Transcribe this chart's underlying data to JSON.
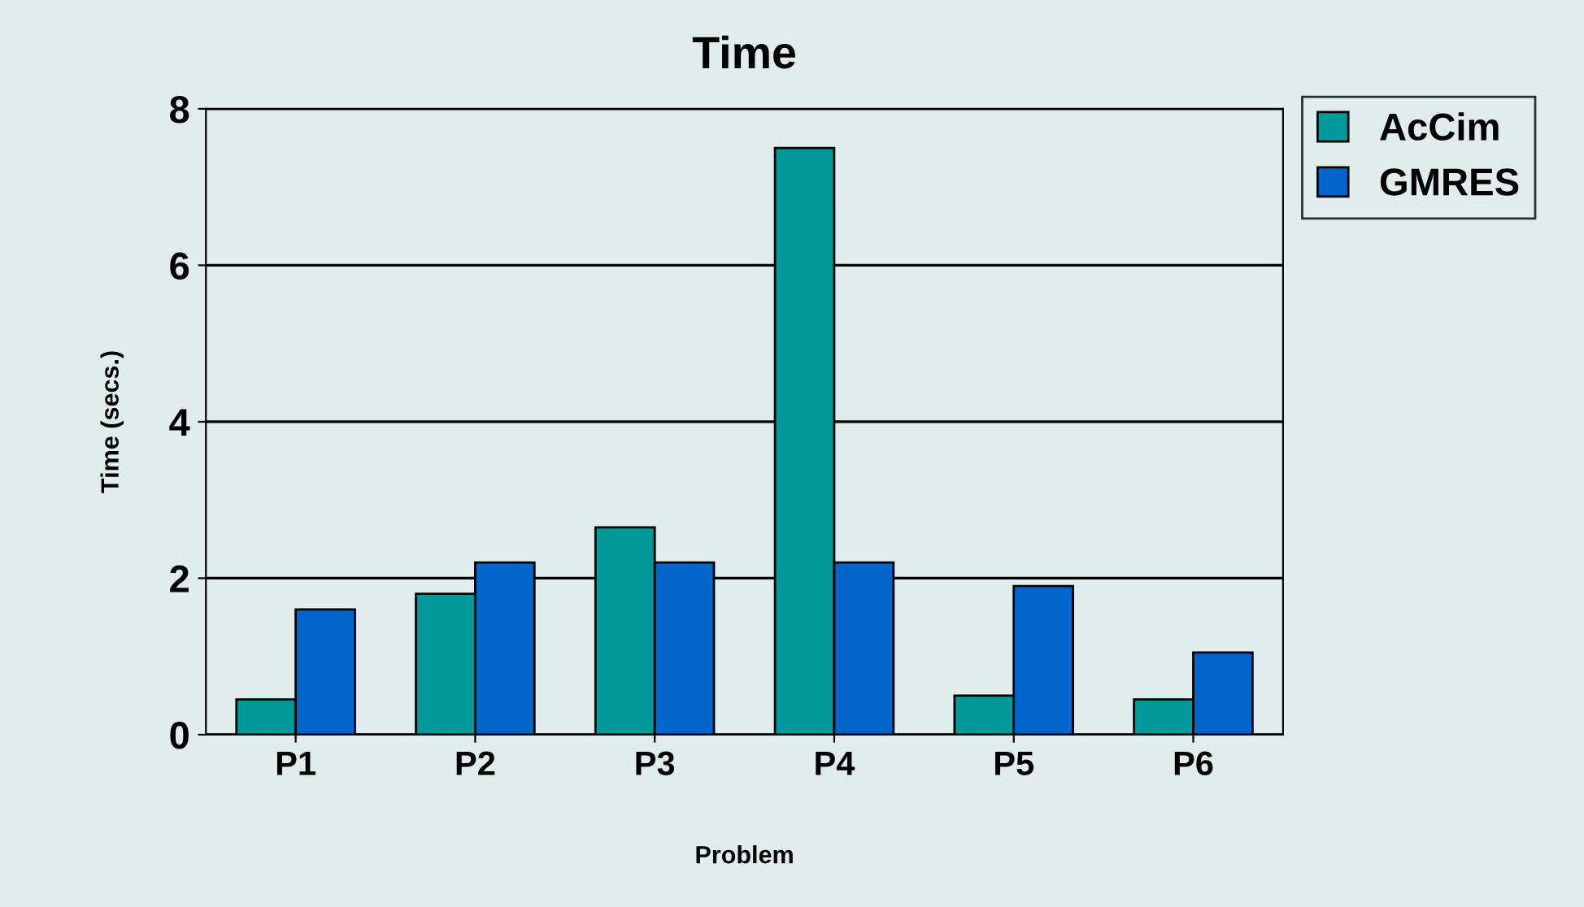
{
  "chart_data": {
    "type": "bar",
    "title": "Time",
    "xlabel": "Problem",
    "ylabel": "Time (secs.)",
    "categories": [
      "P1",
      "P2",
      "P3",
      "P4",
      "P5",
      "P6"
    ],
    "series": [
      {
        "name": "AcCim",
        "color": "#009999",
        "values": [
          0.45,
          1.8,
          2.65,
          7.5,
          0.5,
          0.45
        ]
      },
      {
        "name": "GMRES",
        "color": "#0066cc",
        "values": [
          1.6,
          2.2,
          2.2,
          2.2,
          1.9,
          1.05
        ]
      }
    ],
    "ylim": [
      0,
      8
    ],
    "yticks": [
      0,
      2,
      4,
      6,
      8
    ],
    "grid": "y",
    "legend": "top right"
  }
}
